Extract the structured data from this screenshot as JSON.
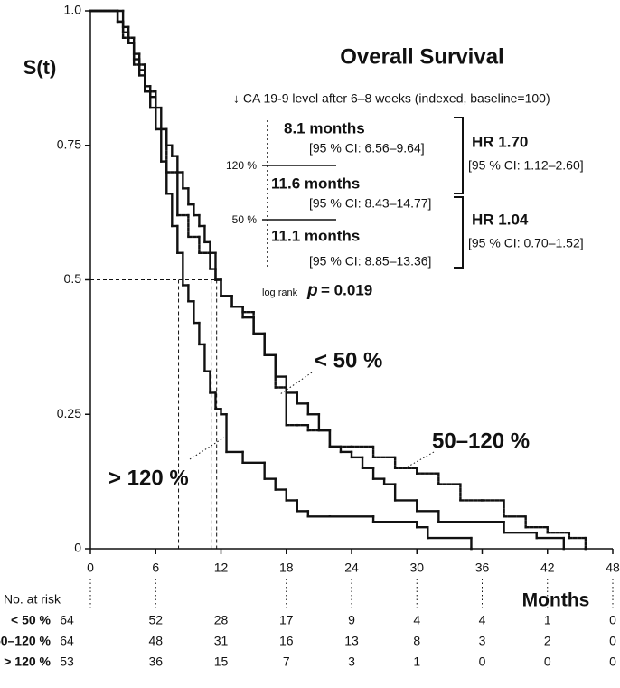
{
  "chart_data": {
    "type": "step",
    "title": "Overall Survival",
    "y_label": "S(t)",
    "x_label": "Months",
    "subtitle": "↓ CA 19-9 level after 6–8 weeks (indexed, baseline=100)",
    "xlim": [
      0,
      48
    ],
    "xticks": [
      0,
      6,
      12,
      18,
      24,
      30,
      36,
      42,
      48
    ],
    "ylim": [
      0,
      1
    ],
    "yticks": [
      0,
      0.25,
      0.5,
      0.75,
      {
        "value": 1,
        "label": "1.0"
      }
    ],
    "median_level": 0.5,
    "medians": [
      8.1,
      11.1,
      11.6
    ],
    "cutoff_labels": [
      "120 %",
      "50 %"
    ],
    "median_texts": [
      {
        "median": "8.1 months",
        "ci": "[95 % CI: 6.56–9.64]"
      },
      {
        "median": "11.6 months",
        "ci": "[95 % CI: 8.43–14.77]"
      },
      {
        "median": "11.1 months",
        "ci": "[95 % CI: 8.85–13.36]"
      }
    ],
    "hazard_ratios": [
      {
        "hr": "HR 1.70",
        "ci": "[95 % CI: 1.12–2.60]"
      },
      {
        "hr": "HR 1.04",
        "ci": "[95 % CI: 0.70–1.52]"
      }
    ],
    "log_rank": {
      "label": "log rank",
      "p": "p",
      "value": "= 0.019"
    },
    "at_risk_title": "No. at risk",
    "series": [
      {
        "name": "< 50 %",
        "color": "#111111",
        "dotted": false,
        "x": [
          0,
          3,
          3.5,
          4,
          4.5,
          5,
          5.5,
          6,
          6.5,
          7,
          7.5,
          8,
          8.5,
          9,
          9.5,
          10,
          10.5,
          11,
          11.5,
          12,
          13,
          14,
          15,
          16,
          17,
          18,
          19,
          20,
          21,
          22,
          23,
          24,
          25,
          26,
          27,
          28,
          30,
          32,
          35,
          38,
          41,
          43.5
        ],
        "values": [
          1,
          0.97,
          0.94,
          0.92,
          0.89,
          0.86,
          0.84,
          0.82,
          0.78,
          0.75,
          0.73,
          0.7,
          0.67,
          0.64,
          0.62,
          0.6,
          0.57,
          0.55,
          0.5,
          0.47,
          0.45,
          0.43,
          0.4,
          0.36,
          0.32,
          0.29,
          0.27,
          0.25,
          0.22,
          0.19,
          0.18,
          0.17,
          0.15,
          0.13,
          0.12,
          0.09,
          0.07,
          0.05,
          0.05,
          0.03,
          0.02,
          0
        ],
        "at_risk": [
          64,
          52,
          28,
          17,
          9,
          4,
          4,
          1,
          0
        ]
      },
      {
        "name": "50–120 %",
        "color": "#111111",
        "dotted": true,
        "x": [
          0,
          2.5,
          3,
          4,
          5,
          6,
          7,
          8,
          9,
          10,
          11,
          11.5,
          12,
          13,
          14,
          15,
          16,
          17,
          18,
          19,
          20,
          22,
          24,
          26,
          28,
          30,
          32,
          34,
          36,
          38,
          40,
          42,
          44,
          45.5
        ],
        "values": [
          1,
          0.98,
          0.95,
          0.9,
          0.85,
          0.78,
          0.7,
          0.62,
          0.58,
          0.55,
          0.52,
          0.5,
          0.47,
          0.45,
          0.44,
          0.4,
          0.36,
          0.3,
          0.23,
          0.23,
          0.22,
          0.19,
          0.19,
          0.17,
          0.15,
          0.14,
          0.12,
          0.09,
          0.09,
          0.06,
          0.04,
          0.03,
          0.02,
          0
        ],
        "at_risk": [
          64,
          48,
          31,
          16,
          13,
          8,
          3,
          2,
          0
        ]
      },
      {
        "name": "> 120 %",
        "color": "#111111",
        "dotted": false,
        "x": [
          0,
          2.5,
          3,
          3.5,
          4,
          4.5,
          5,
          5.5,
          6,
          6.5,
          7,
          7.5,
          8,
          8.5,
          9,
          9.5,
          10,
          10.5,
          11,
          11.5,
          12,
          12.5,
          14,
          16,
          17,
          18,
          19,
          20,
          22,
          26,
          30,
          31,
          35
        ],
        "values": [
          1,
          0.98,
          0.96,
          0.94,
          0.91,
          0.88,
          0.85,
          0.82,
          0.78,
          0.72,
          0.66,
          0.6,
          0.55,
          0.49,
          0.46,
          0.42,
          0.38,
          0.33,
          0.29,
          0.26,
          0.25,
          0.18,
          0.16,
          0.13,
          0.11,
          0.09,
          0.07,
          0.06,
          0.06,
          0.05,
          0.04,
          0.02,
          0
        ],
        "at_risk": [
          53,
          36,
          15,
          7,
          3,
          1,
          0,
          0,
          0
        ]
      }
    ]
  }
}
